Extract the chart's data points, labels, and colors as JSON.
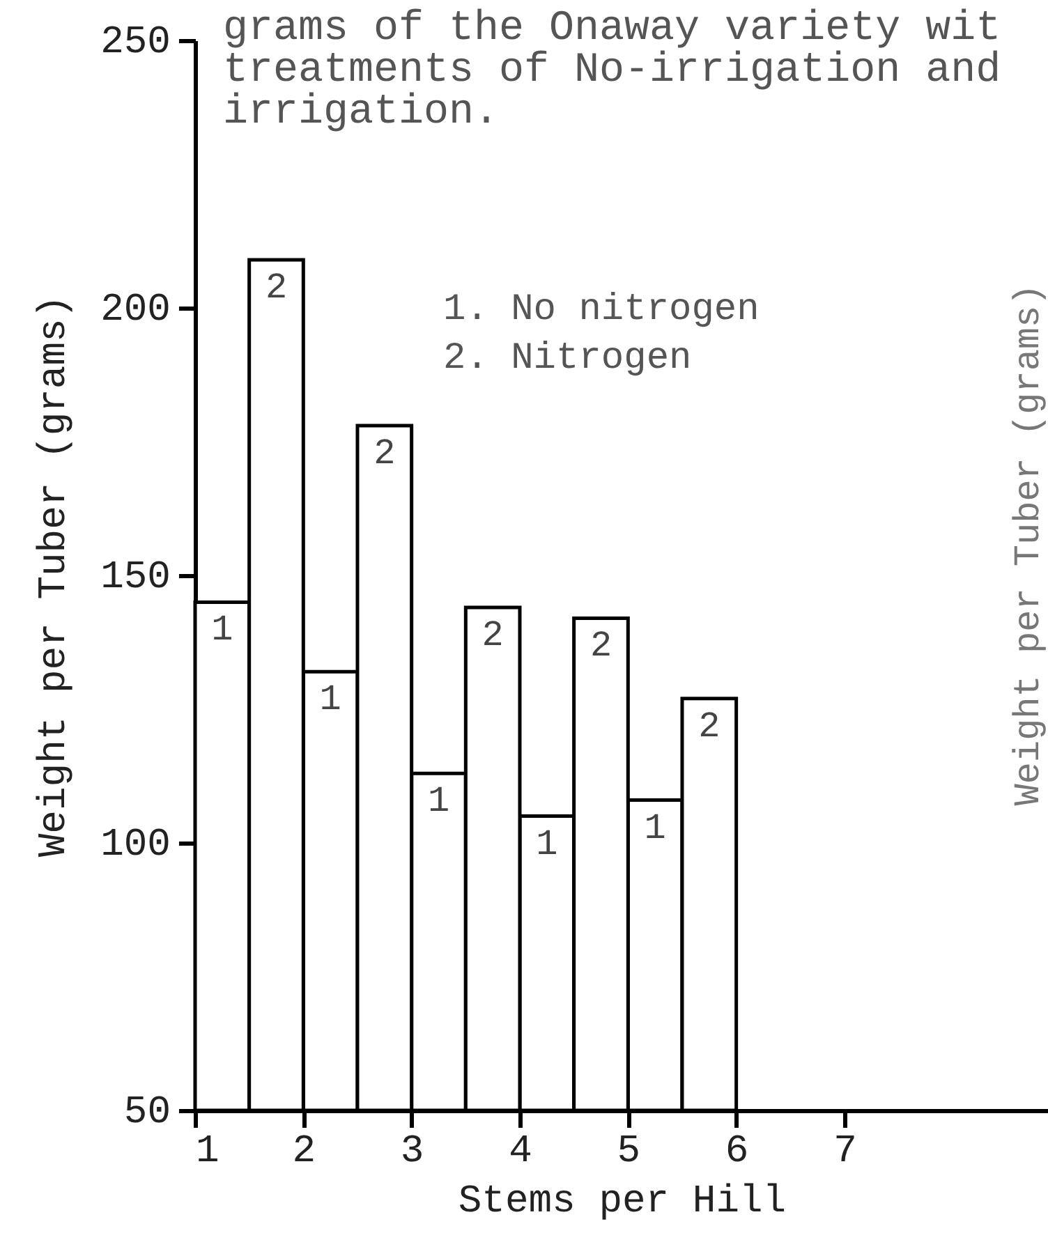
{
  "chart_data": {
    "type": "bar",
    "title": [
      "grams of the Onaway variety wit",
      "treatments of No-irrigation and",
      "irrigation."
    ],
    "xlabel": "Stems per Hill",
    "ylabel": "Weight per Tuber (grams)",
    "y2label": "Weight per Tuber (grams)",
    "series": [
      {
        "color": "#ffffff",
        "x": [
          1.25,
          2.25,
          3.25,
          4.25,
          5.25
        ],
        "values": [
          145,
          132,
          113,
          105,
          108
        ]
      },
      {
        "color": "#ffffff",
        "x": [
          1.75,
          2.75,
          3.75,
          4.75,
          5.75
        ],
        "values": [
          209,
          178,
          144,
          142,
          127
        ]
      }
    ],
    "annotations": [
      "1. No nitrogen",
      "2. Nitrogen",
      {
        "text": "1",
        "x": 1.25,
        "y": 145
      },
      {
        "text": "2",
        "x": 1.75,
        "y": 209
      },
      {
        "text": "1",
        "x": 2.25,
        "y": 132
      },
      {
        "text": "2",
        "x": 2.75,
        "y": 178
      },
      {
        "text": "1",
        "x": 3.25,
        "y": 113
      },
      {
        "text": "2",
        "x": 3.75,
        "y": 144
      },
      {
        "text": "1",
        "x": 4.25,
        "y": 105
      },
      {
        "text": "2",
        "x": 4.75,
        "y": 142
      },
      {
        "text": "1",
        "x": 5.25,
        "y": 108
      },
      {
        "text": "2",
        "x": 5.75,
        "y": 127
      }
    ],
    "xlim": [
      1,
      8.88
    ],
    "xticks": [
      1,
      2,
      3,
      4,
      5,
      6,
      7
    ],
    "ylim": [
      50,
      250
    ],
    "yticks": [
      50,
      100,
      150,
      200,
      250
    ],
    "grid": false
  }
}
